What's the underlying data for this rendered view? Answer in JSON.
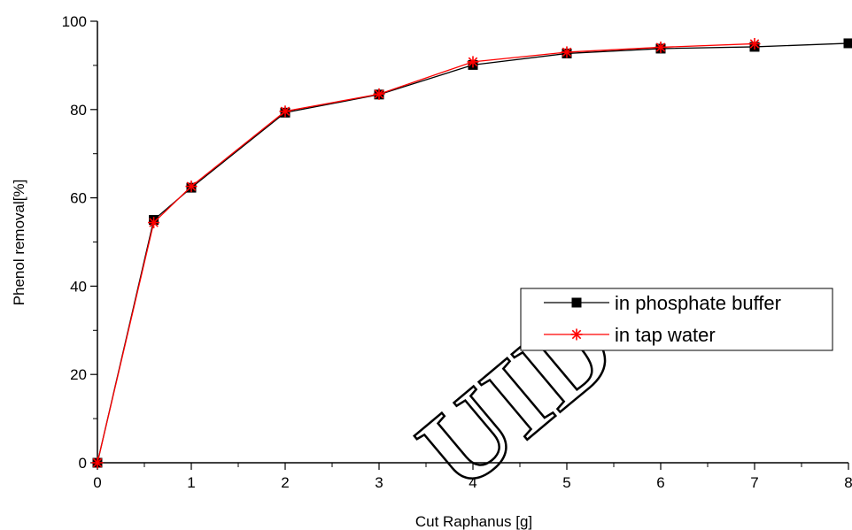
{
  "chart_data": {
    "type": "line",
    "title": "",
    "xlabel": "Cut Raphanus [g]",
    "ylabel": "Phenol removal[%]",
    "xlim": [
      0,
      8
    ],
    "ylim": [
      0,
      100
    ],
    "xticks": [
      0,
      1,
      2,
      3,
      4,
      5,
      6,
      7,
      8
    ],
    "yticks": [
      0,
      20,
      40,
      60,
      80,
      100
    ],
    "grid": false,
    "legend_position": "center-right",
    "series": [
      {
        "name": "in phosphate buffer",
        "marker": "square",
        "color": "#000000",
        "x": [
          0,
          0.6,
          1,
          2,
          3,
          4,
          5,
          6,
          7,
          8
        ],
        "y": [
          0,
          55,
          62.3,
          79.3,
          83.4,
          90.1,
          92.7,
          93.8,
          94.2,
          95
        ]
      },
      {
        "name": "in tap water",
        "marker": "asterisk",
        "color": "#ff0000",
        "x": [
          0,
          0.6,
          1,
          2,
          3,
          4,
          5,
          6,
          7
        ],
        "y": [
          0,
          54.4,
          62.6,
          79.6,
          83.5,
          90.8,
          93.0,
          94.1,
          94.9
        ]
      }
    ]
  },
  "watermark_text": "UID"
}
